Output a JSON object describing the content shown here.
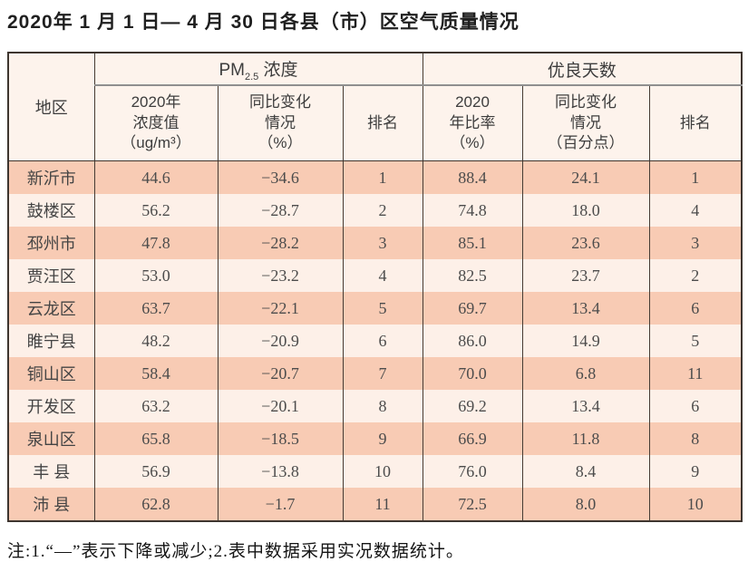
{
  "title": "2020年 1 月 1 日— 4 月 30 日各县（市）区空气质量情况",
  "table": {
    "region_header": "地区",
    "group_pm": {
      "prefix": "PM",
      "sub": "2.5",
      "suffix": " 浓度"
    },
    "group_good_days": "优良天数",
    "columns": [
      "2020年\n浓度值\n（ug/m³）",
      "同比变化\n情况\n（%）",
      "排名",
      "2020\n年比率\n（%）",
      "同比变化\n情况\n（百分点）",
      "排名"
    ],
    "rows": [
      [
        "新沂市",
        "44.6",
        "−34.6",
        "1",
        "88.4",
        "24.1",
        "1"
      ],
      [
        "鼓楼区",
        "56.2",
        "−28.7",
        "2",
        "74.8",
        "18.0",
        "4"
      ],
      [
        "邳州市",
        "47.8",
        "−28.2",
        "3",
        "85.1",
        "23.6",
        "3"
      ],
      [
        "贾汪区",
        "53.0",
        "−23.2",
        "4",
        "82.5",
        "23.7",
        "2"
      ],
      [
        "云龙区",
        "63.7",
        "−22.1",
        "5",
        "69.7",
        "13.4",
        "6"
      ],
      [
        "睢宁县",
        "48.2",
        "−20.9",
        "6",
        "86.0",
        "14.9",
        "5"
      ],
      [
        "铜山区",
        "58.4",
        "−20.7",
        "7",
        "70.0",
        "6.8",
        "11"
      ],
      [
        "开发区",
        "63.2",
        "−20.1",
        "8",
        "69.2",
        "13.4",
        "6"
      ],
      [
        "泉山区",
        "65.8",
        "−18.5",
        "9",
        "66.9",
        "11.8",
        "8"
      ],
      [
        "丰 县",
        "56.9",
        "−13.8",
        "10",
        "76.0",
        "8.4",
        "9"
      ],
      [
        "沛 县",
        "62.8",
        "−1.7",
        "11",
        "72.5",
        "8.0",
        "10"
      ]
    ]
  },
  "note": "注:1.“—”表示下降或减少;2.表中数据采用实况数据统计。",
  "colors": {
    "row_odd": "#f8cbb4",
    "row_even": "#fdf0e8",
    "header_bg": "#fdf3ec",
    "border_dark": "#3e352f",
    "divider_gray": "#8f8f8f"
  }
}
